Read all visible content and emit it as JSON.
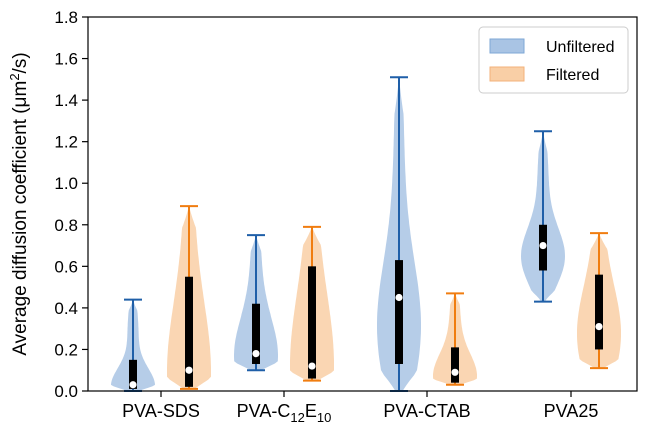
{
  "chart_data": {
    "type": "violin",
    "ylabel_main": "Average diffusion coefficient (μm",
    "ylabel_sup": "2",
    "ylabel_tail": "/s)",
    "ylim": [
      0,
      1.8
    ],
    "yticks": [
      0.0,
      0.2,
      0.4,
      0.6,
      0.8,
      1.0,
      1.2,
      1.4,
      1.6,
      1.8
    ],
    "grid": false,
    "legend_position": "top-right",
    "categories": [
      {
        "label": "PVA-SDS"
      },
      {
        "label": "PVA-C",
        "sub1": "12",
        "mid": "E",
        "sub2": "10"
      },
      {
        "label": "PVA-CTAB"
      },
      {
        "label": "PVA25"
      }
    ],
    "series": [
      {
        "name": "Unfiltered",
        "color": "#1f5fa8",
        "fill": "#a9c4e4",
        "stats": [
          {
            "min": 0.0,
            "q1": 0.01,
            "median": 0.03,
            "q3": 0.15,
            "max": 0.44
          },
          {
            "min": 0.1,
            "q1": 0.13,
            "median": 0.18,
            "q3": 0.42,
            "max": 0.75
          },
          {
            "min": 0.0,
            "q1": 0.13,
            "median": 0.45,
            "q3": 0.63,
            "max": 1.51
          },
          {
            "min": 0.43,
            "q1": 0.58,
            "median": 0.7,
            "q3": 0.8,
            "max": 1.25
          }
        ]
      },
      {
        "name": "Filtered",
        "color": "#f07d10",
        "fill": "#f9cfa6",
        "stats": [
          {
            "min": 0.01,
            "q1": 0.02,
            "median": 0.1,
            "q3": 0.55,
            "max": 0.89
          },
          {
            "min": 0.05,
            "q1": 0.06,
            "median": 0.12,
            "q3": 0.6,
            "max": 0.79
          },
          {
            "min": 0.03,
            "q1": 0.04,
            "median": 0.09,
            "q3": 0.21,
            "max": 0.47
          },
          {
            "min": 0.11,
            "q1": 0.2,
            "median": 0.31,
            "q3": 0.56,
            "max": 0.76
          }
        ]
      }
    ]
  }
}
